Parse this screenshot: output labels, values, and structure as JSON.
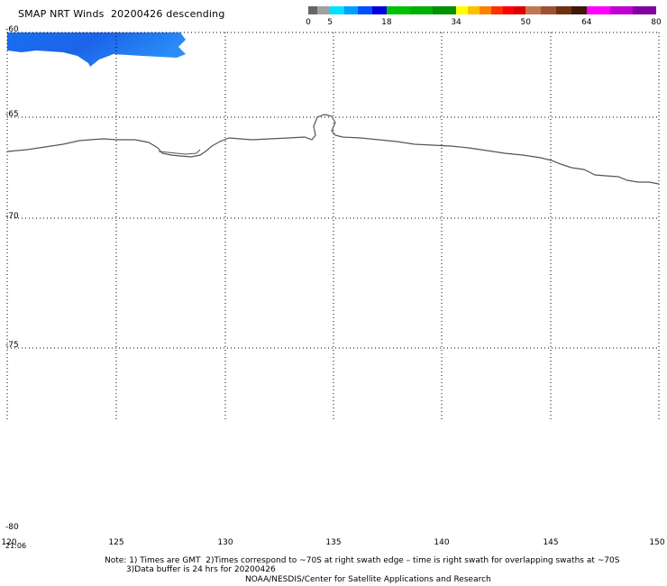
{
  "header": {
    "title": "SMAP NRT Winds  20200426 descending"
  },
  "colorbar": {
    "labels": [
      "0",
      "5",
      "18",
      "34",
      "50",
      "64",
      "80"
    ],
    "segments": [
      {
        "from": 0,
        "to": 2,
        "colors": [
          "#666666"
        ]
      },
      {
        "from": 2,
        "to": 5,
        "colors": [
          "#a0a0a0"
        ]
      },
      {
        "from": 5,
        "to": 18,
        "colors": [
          "#00e0ff",
          "#00a0ff",
          "#0050ff",
          "#0000e0"
        ]
      },
      {
        "from": 18,
        "to": 34,
        "colors": [
          "#00c000",
          "#00b000",
          "#009000"
        ]
      },
      {
        "from": 34,
        "to": 50,
        "colors": [
          "#ffff00",
          "#ffc000",
          "#ff8000",
          "#ff3000",
          "#ff0000",
          "#e00000"
        ]
      },
      {
        "from": 50,
        "to": 64,
        "colors": [
          "#c07850",
          "#a05030",
          "#703010",
          "#401808"
        ]
      },
      {
        "from": 64,
        "to": 80,
        "colors": [
          "#ff00ff",
          "#c000d0",
          "#8000a0"
        ]
      }
    ]
  },
  "map": {
    "lat_labels": [
      "-60",
      "-65",
      "-70",
      "-75",
      "-80"
    ],
    "lon_labels": [
      "120",
      "125",
      "130",
      "135",
      "140",
      "145",
      "150"
    ],
    "time_label": "21:06",
    "lat_range": [
      -80,
      -60
    ],
    "lon_range": [
      120,
      150
    ],
    "grid": "dotted",
    "wind_swath_color": "#1e78f0",
    "coastline_color": "#555555"
  },
  "notes": {
    "line1": "Note: 1) Times are GMT  2)Times correspond to ~70S at right swath edge – time is right swath for overlapping swaths at ~70S",
    "line2": "3)Data buffer is 24 hrs for 20200426",
    "line3": "NOAA/NESDIS/Center for Satellite Applications and Research"
  }
}
